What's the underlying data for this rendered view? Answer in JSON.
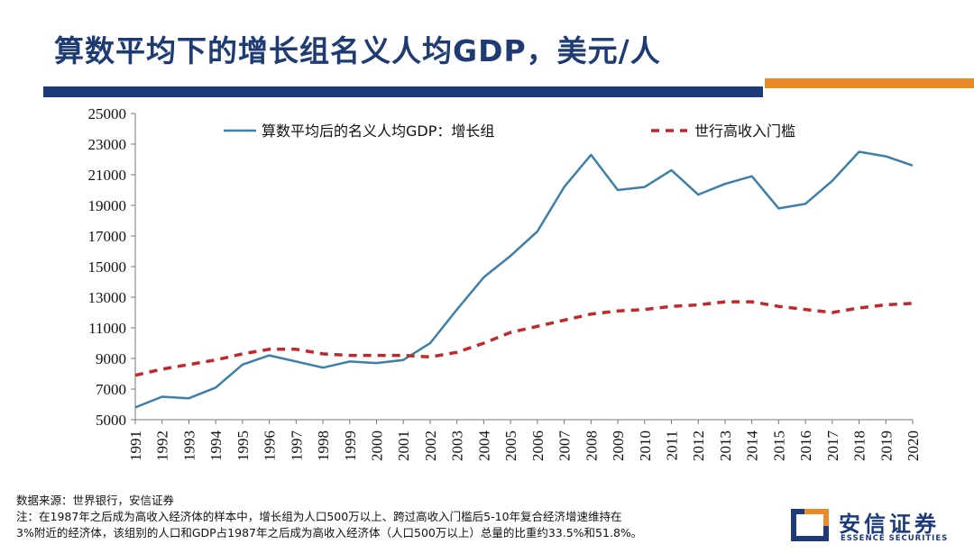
{
  "title": "算数平均下的增长组名义人均GDP，美元/人",
  "source": "数据来源：世界银行，安信证券",
  "notes": [
    "注：在1987年之后成为高收入经济体的样本中，增长组为人口500万以上、跨过高收入门槛后5-10年复合经济增速维持在",
    "3%附近的经济体，该组别的人口和GDP占1987年之后成为高收入经济体（人口500万以上）总量的比重约33.5%和51.8%。"
  ],
  "logo": {
    "cn": "安信证券",
    "en": "ESSENCE SECURITIES"
  },
  "colors": {
    "title": "#1f3b73",
    "bar_blue": "#1d3a7a",
    "bar_orange": "#e98b26",
    "growth_line": "#3d7fa8",
    "threshold_line": "#c0282b"
  },
  "chart_data": {
    "type": "line",
    "x": [
      "1991",
      "1992",
      "1993",
      "1994",
      "1995",
      "1996",
      "1997",
      "1998",
      "1999",
      "2000",
      "2001",
      "2002",
      "2003",
      "2004",
      "2005",
      "2006",
      "2007",
      "2008",
      "2009",
      "2010",
      "2011",
      "2012",
      "2013",
      "2014",
      "2015",
      "2016",
      "2017",
      "2018",
      "2019",
      "2020"
    ],
    "yticks": [
      "25000",
      "23000",
      "21000",
      "19000",
      "17000",
      "15000",
      "13000",
      "11000",
      "9000",
      "7000",
      "5000"
    ],
    "ylim": [
      5000,
      25000
    ],
    "legend_position": "top",
    "series": [
      {
        "name": "算数平均后的名义人均GDP：增长组",
        "style": "solid",
        "values": [
          5800,
          6500,
          6400,
          7100,
          8600,
          9200,
          8800,
          8400,
          8800,
          8700,
          8900,
          10000,
          12200,
          14300,
          15700,
          17300,
          20200,
          22300,
          20000,
          20200,
          21300,
          19700,
          20400,
          20900,
          18800,
          19100,
          20600,
          22500,
          22200,
          21600
        ]
      },
      {
        "name": "世行高收入门槛",
        "style": "dashed",
        "values": [
          7900,
          8300,
          8600,
          8900,
          9300,
          9600,
          9600,
          9300,
          9200,
          9200,
          9200,
          9100,
          9400,
          10000,
          10700,
          11100,
          11500,
          11900,
          12100,
          12200,
          12400,
          12500,
          12700,
          12700,
          12400,
          12200,
          12000,
          12300,
          12500,
          12600
        ]
      }
    ]
  }
}
